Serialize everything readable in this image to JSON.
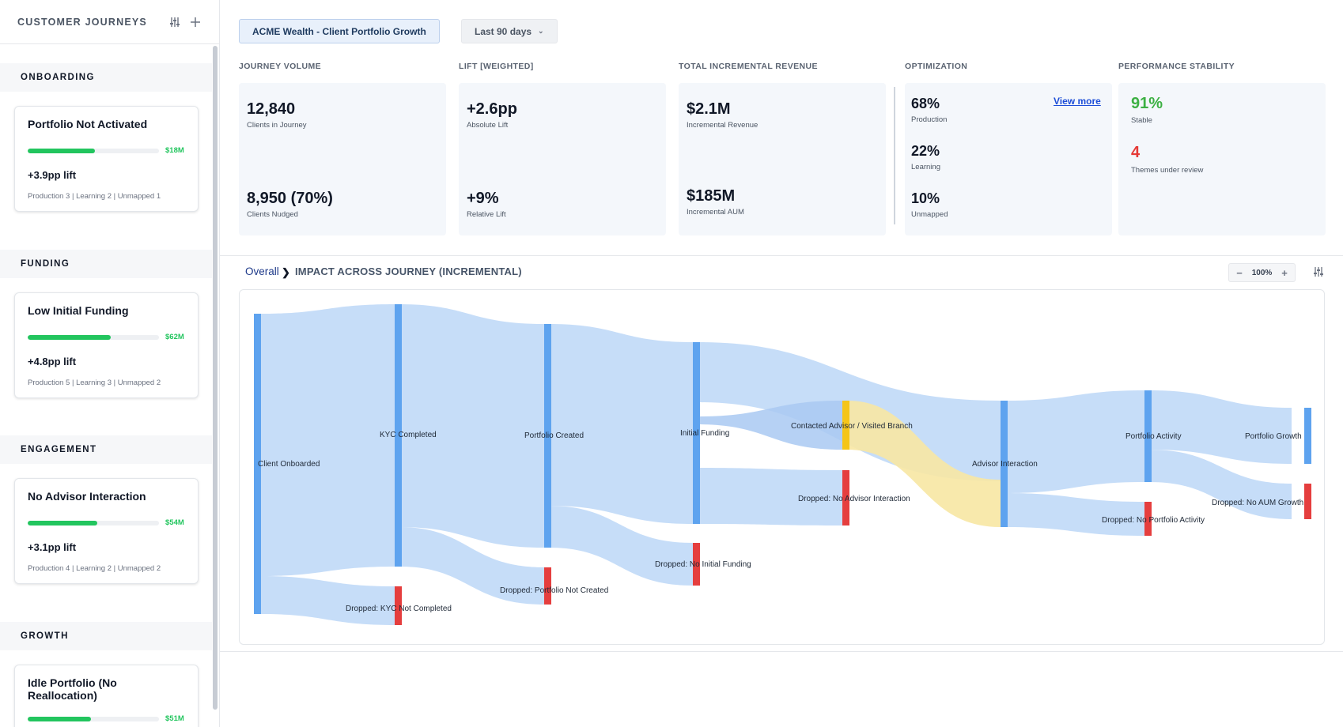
{
  "sidebar": {
    "title": "CUSTOMER JOURNEYS",
    "sections": [
      {
        "label": "ONBOARDING",
        "card": {
          "title": "Portfolio Not Activated",
          "amount": "$18M",
          "progress": 0.51,
          "lift": "+3.9pp lift",
          "meta": "Production 3 | Learning 2 | Unmapped 1"
        }
      },
      {
        "label": "FUNDING",
        "card": {
          "title": "Low Initial Funding",
          "amount": "$62M",
          "progress": 0.63,
          "lift": "+4.8pp lift",
          "meta": "Production 5 | Learning 3 | Unmapped 2"
        }
      },
      {
        "label": "ENGAGEMENT",
        "card": {
          "title": "No Advisor Interaction",
          "amount": "$54M",
          "progress": 0.53,
          "lift": "+3.1pp lift",
          "meta": "Production 4 | Learning 2 | Unmapped 2"
        }
      },
      {
        "label": "GROWTH",
        "card": {
          "title": "Idle Portfolio (No Reallocation)",
          "amount": "$51M",
          "progress": 0.48,
          "lift": "",
          "meta": ""
        }
      }
    ]
  },
  "header": {
    "journey": "ACME Wealth - Client Portfolio Growth",
    "range": "Last 90 days"
  },
  "kpis": {
    "volume": {
      "label": "JOURNEY VOLUME",
      "v1": "12,840",
      "l1": "Clients in Journey",
      "v2": "8,950 (70%)",
      "l2": "Clients Nudged"
    },
    "lift": {
      "label": "LIFT [WEIGHTED]",
      "v1": "+2.6pp",
      "l1": "Absolute Lift",
      "v2": "+9%",
      "l2": "Relative Lift"
    },
    "revenue": {
      "label": "TOTAL INCREMENTAL REVENUE",
      "v1": "$2.1M",
      "l1": "Incremental Revenue",
      "v2": "$185M",
      "l2": "Incremental AUM"
    },
    "optimization": {
      "label": "OPTIMIZATION",
      "v1": "68%",
      "l1": "Production",
      "v2": "22%",
      "l2": "Learning",
      "v3": "10%",
      "l3": "Unmapped",
      "link": "View more"
    },
    "stability": {
      "label": "PERFORMANCE STABILITY",
      "v1": "91%",
      "l1": "Stable",
      "v2": "4",
      "l2": "Themes under review"
    }
  },
  "colors": {
    "good": "#22c55e",
    "stable": "#3cb043",
    "alert": "#e53935",
    "node": "#5ea3ef",
    "drop": "#e53e3e",
    "advisor": "#f5c518"
  },
  "impact": {
    "breadcrumb_root": "Overall",
    "title": "IMPACT ACROSS JOURNEY (INCREMENTAL)",
    "zoom": "100%"
  },
  "sankey_labels": {
    "client_onboarded": "Client Onboarded",
    "kyc_completed": "KYC Completed",
    "portfolio_created": "Portfolio Created",
    "initial_funding": "Initial Funding",
    "contacted_advisor": "Contacted Advisor / Visited Branch",
    "advisor_interaction": "Advisor Interaction",
    "portfolio_activity": "Portfolio Activity",
    "portfolio_growth": "Portfolio Growth",
    "drop_kyc": "Dropped: KYC Not Completed",
    "drop_portfolio": "Dropped: Portfolio Not Created",
    "drop_funding": "Dropped: No Initial Funding",
    "drop_advisor": "Dropped: No Advisor Interaction",
    "drop_activity": "Dropped: No Portfolio Activity",
    "drop_aum": "Dropped: No AUM Growth"
  }
}
